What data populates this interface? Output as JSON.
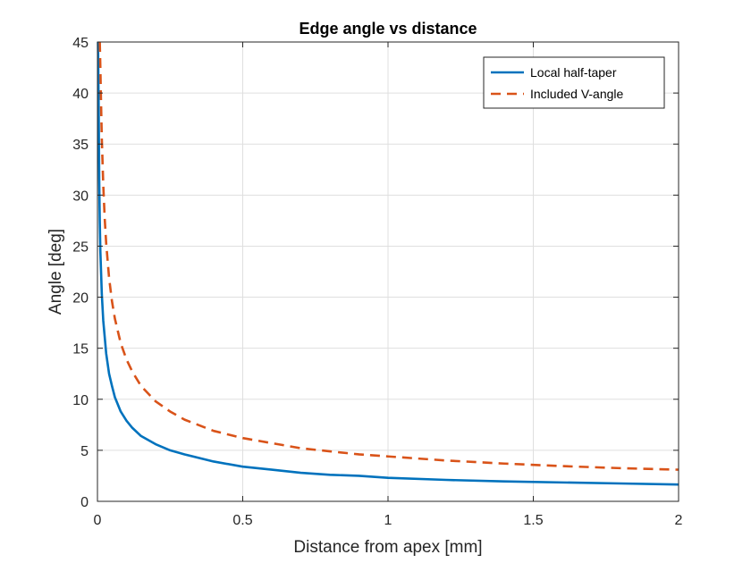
{
  "chart_data": {
    "type": "line",
    "title": "Edge angle vs distance",
    "xlabel": "Distance from apex [mm]",
    "ylabel": "Angle [deg]",
    "xlim": [
      0,
      2
    ],
    "ylim": [
      0,
      45
    ],
    "xticks": [
      0,
      0.5,
      1,
      1.5,
      2
    ],
    "xtick_labels": [
      "0",
      "0.5",
      "1",
      "1.5",
      "2"
    ],
    "yticks": [
      0,
      5,
      10,
      15,
      20,
      25,
      30,
      35,
      40,
      45
    ],
    "ytick_labels": [
      "0",
      "5",
      "10",
      "15",
      "20",
      "25",
      "30",
      "35",
      "40",
      "45"
    ],
    "grid": true,
    "legend_position": "top-right",
    "series": [
      {
        "name": "Local half-taper",
        "color": "#0072BD",
        "style": "solid",
        "x": [
          0.002,
          0.004,
          0.006,
          0.008,
          0.01,
          0.015,
          0.02,
          0.03,
          0.04,
          0.05,
          0.06,
          0.08,
          0.1,
          0.12,
          0.15,
          0.2,
          0.25,
          0.3,
          0.4,
          0.5,
          0.6,
          0.7,
          0.8,
          0.9,
          1.0,
          1.2,
          1.4,
          1.6,
          1.8,
          2.0
        ],
        "y": [
          45,
          39.2,
          31.6,
          27.4,
          24.5,
          20.3,
          17.7,
          14.5,
          12.5,
          11.3,
          10.2,
          8.8,
          7.9,
          7.2,
          6.4,
          5.6,
          5.0,
          4.6,
          3.9,
          3.4,
          3.1,
          2.8,
          2.6,
          2.5,
          2.3,
          2.1,
          1.95,
          1.85,
          1.75,
          1.65
        ]
      },
      {
        "name": "Included V-angle",
        "color": "#D95319",
        "style": "dashed",
        "x": [
          0.008,
          0.01,
          0.012,
          0.015,
          0.02,
          0.025,
          0.03,
          0.04,
          0.05,
          0.06,
          0.08,
          0.1,
          0.12,
          0.15,
          0.2,
          0.25,
          0.3,
          0.4,
          0.5,
          0.6,
          0.7,
          0.8,
          0.9,
          1.0,
          1.2,
          1.4,
          1.6,
          1.8,
          2.0
        ],
        "y": [
          45,
          42.5,
          39.5,
          35.5,
          31.0,
          27.7,
          25.3,
          21.9,
          19.6,
          17.9,
          15.5,
          13.9,
          12.7,
          11.3,
          9.8,
          8.8,
          8.0,
          6.9,
          6.2,
          5.7,
          5.2,
          4.9,
          4.6,
          4.4,
          4.0,
          3.7,
          3.45,
          3.25,
          3.1
        ]
      }
    ]
  }
}
